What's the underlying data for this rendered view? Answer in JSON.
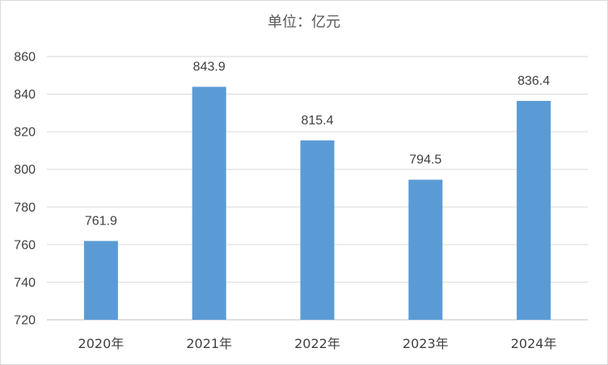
{
  "chart_data": {
    "type": "bar",
    "title": "单位：亿元",
    "categories": [
      "2020年",
      "2021年",
      "2022年",
      "2023年",
      "2024年"
    ],
    "values": [
      761.9,
      843.9,
      815.4,
      794.5,
      836.4
    ],
    "ylim": [
      720,
      860
    ],
    "yticks": [
      720,
      740,
      760,
      780,
      800,
      820,
      840,
      860
    ],
    "grid": true,
    "bar_color": "#5B9BD5",
    "data_labels": true
  }
}
